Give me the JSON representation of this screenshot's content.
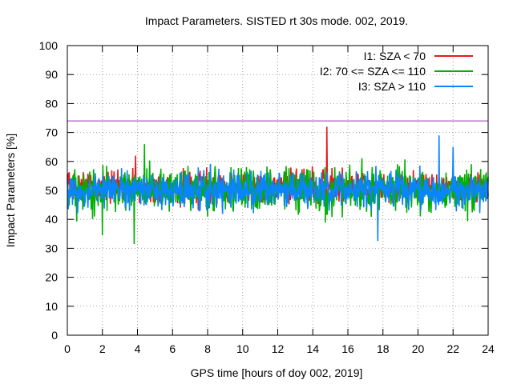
{
  "chart_data": {
    "type": "line",
    "title": "Impact Parameters. SISTED rt 30s mode. 002, 2019.",
    "xlabel": "GPS time [hours of doy 002, 2019]",
    "ylabel": "Impact Parameters [%]",
    "xlim": [
      0,
      24
    ],
    "ylim": [
      0,
      100
    ],
    "xticks": [
      0,
      2,
      4,
      6,
      8,
      10,
      12,
      14,
      16,
      18,
      20,
      22,
      24
    ],
    "yticks": [
      0,
      10,
      20,
      30,
      40,
      50,
      60,
      70,
      80,
      90,
      100
    ],
    "grid": true,
    "legend_position": "top-right",
    "reference_line": {
      "y": 74,
      "color": "#9b30b4"
    },
    "series": [
      {
        "name": "I1: SZA < 70",
        "color": "#e41a1c",
        "center": 50,
        "typical_range": [
          44,
          58
        ],
        "extremes": [
          {
            "x": 14.8,
            "y": 72
          },
          {
            "x": 3.9,
            "y": 62
          }
        ]
      },
      {
        "name": "I2: 70 <= SZA <= 110",
        "color": "#00b000",
        "center": 50,
        "typical_range": [
          40,
          60
        ],
        "extremes": [
          {
            "x": 3.8,
            "y": 31.5
          },
          {
            "x": 4.4,
            "y": 66
          },
          {
            "x": 2.0,
            "y": 34.5
          }
        ]
      },
      {
        "name": "I3: SZA > 110",
        "color": "#0a84ff",
        "center": 50,
        "typical_range": [
          42,
          58
        ],
        "extremes": [
          {
            "x": 17.7,
            "y": 32.5
          },
          {
            "x": 21.2,
            "y": 69
          },
          {
            "x": 22.0,
            "y": 65
          }
        ]
      }
    ]
  }
}
